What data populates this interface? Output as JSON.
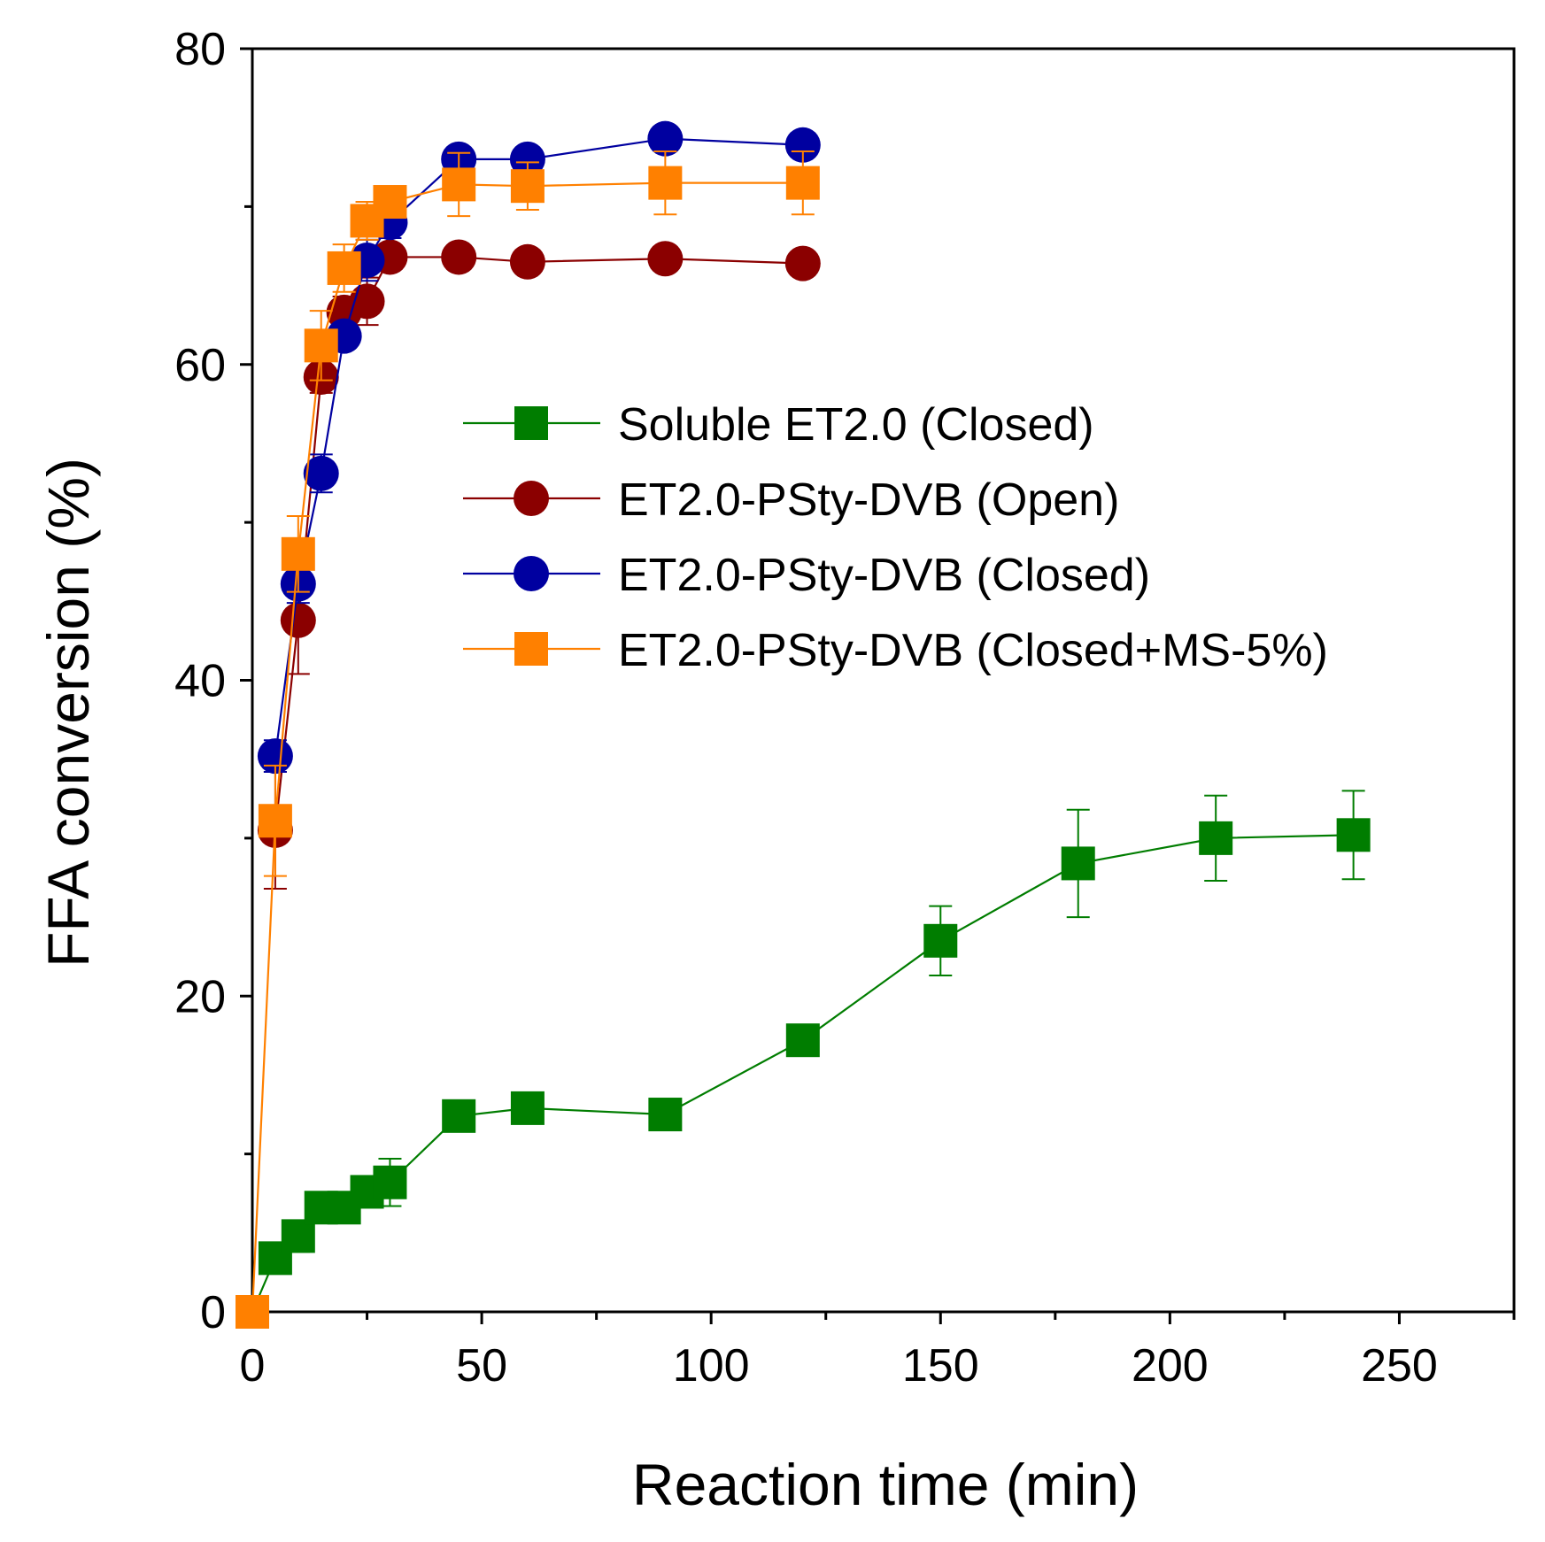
{
  "chart_data": {
    "type": "line",
    "xlabel": "Reaction time (min)",
    "ylabel": "FFA conversion (%)",
    "xlim": [
      0,
      275
    ],
    "ylim": [
      0,
      80
    ],
    "xticks": [
      0,
      50,
      100,
      150,
      200,
      250
    ],
    "yticks": [
      0,
      20,
      40,
      60,
      80
    ],
    "xticks_minor": [
      25,
      75,
      125,
      175,
      225,
      275
    ],
    "yticks_minor": [
      10,
      30,
      50,
      70
    ],
    "legend_position": "center-right",
    "series": [
      {
        "name": "Soluble ET2.0 (Closed)",
        "color": "#007d00",
        "marker": "square",
        "x": [
          0,
          5,
          10,
          15,
          20,
          25,
          30,
          45,
          60,
          90,
          120,
          150,
          180,
          210,
          240
        ],
        "y": [
          0,
          3.4,
          4.8,
          6.6,
          6.6,
          7.6,
          8.2,
          12.4,
          12.9,
          12.5,
          17.2,
          23.5,
          28.4,
          30.0,
          30.2
        ],
        "err": [
          0,
          0.5,
          1.0,
          0.8,
          0.8,
          0.8,
          1.5,
          0.6,
          0.8,
          0.4,
          0.5,
          2.2,
          3.4,
          2.7,
          2.8
        ]
      },
      {
        "name": "ET2.0-PSty-DVB (Open)",
        "color": "#8b0000",
        "marker": "circle",
        "x": [
          5,
          10,
          15,
          20,
          25,
          30,
          45,
          60,
          90,
          120
        ],
        "y": [
          30.5,
          43.8,
          59.2,
          63.3,
          64.0,
          66.8,
          66.8,
          66.5,
          66.7,
          66.4
        ],
        "err": [
          3.7,
          3.4,
          1.0,
          1.0,
          1.5,
          0.6,
          0.4,
          0.4,
          0.4,
          0.4
        ]
      },
      {
        "name": "ET2.0-PSty-DVB (Closed)",
        "color": "#0000a0",
        "marker": "circle",
        "x": [
          5,
          10,
          15,
          20,
          25,
          30,
          45,
          60,
          90,
          120
        ],
        "y": [
          35.2,
          46.1,
          53.1,
          61.8,
          66.6,
          69.0,
          73.0,
          73.0,
          74.3,
          73.9
        ],
        "err": [
          1.0,
          1.2,
          1.2,
          0.8,
          1.3,
          1.0,
          0.5,
          0.5,
          0.6,
          0.6
        ]
      },
      {
        "name": "ET2.0-PSty-DVB (Closed+MS-5%)",
        "color": "#ff8000",
        "marker": "square",
        "x": [
          0,
          5,
          10,
          15,
          20,
          25,
          30,
          45,
          60,
          90,
          120
        ],
        "y": [
          0,
          31.1,
          48.0,
          61.2,
          66.1,
          69.1,
          70.3,
          71.4,
          71.3,
          71.5,
          71.5
        ],
        "err": [
          0,
          3.5,
          2.4,
          2.2,
          1.5,
          1.2,
          0.8,
          2.0,
          1.5,
          2.0,
          2.0
        ]
      }
    ]
  }
}
